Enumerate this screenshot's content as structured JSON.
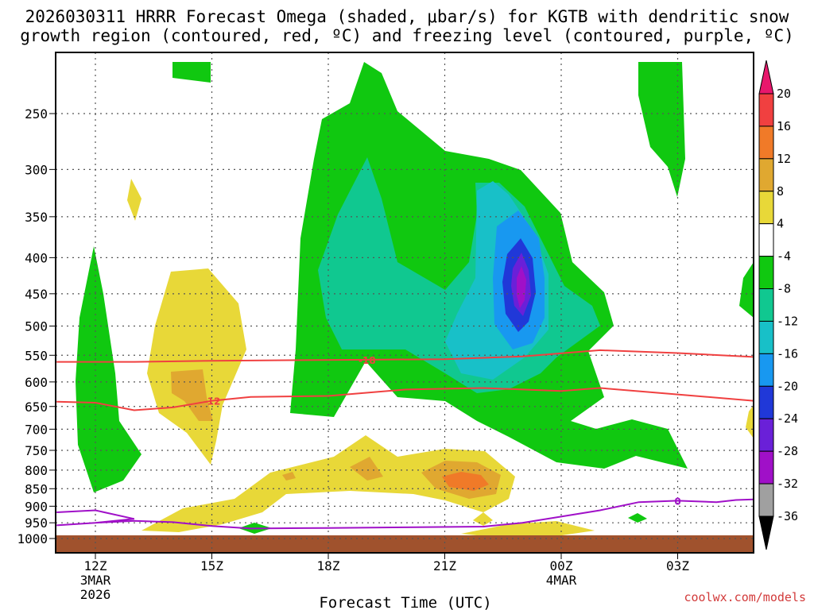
{
  "chart_data": {
    "type": "contour",
    "title_line1": "2026030311 HRRR Forecast Omega (shaded, μbar/s) for KGTB with dendritic snow",
    "title_line2": "growth region (contoured, red, ºC) and freezing level (contoured, purple, ºC)",
    "xlabel": "Forecast Time (UTC)",
    "ylabel": "",
    "credit": "coolwx.com/models",
    "x_ticks": [
      {
        "hour": 12,
        "label": "12Z",
        "sub1": "3MAR",
        "sub2": "2026"
      },
      {
        "hour": 15,
        "label": "15Z",
        "sub1": "",
        "sub2": ""
      },
      {
        "hour": 18,
        "label": "18Z",
        "sub1": "",
        "sub2": ""
      },
      {
        "hour": 21,
        "label": "21Z",
        "sub1": "",
        "sub2": ""
      },
      {
        "hour": 24,
        "label": "00Z",
        "sub1": "4MAR",
        "sub2": ""
      },
      {
        "hour": 27,
        "label": "03Z",
        "sub1": "",
        "sub2": ""
      }
    ],
    "xlim": [
      11,
      29
    ],
    "y_ticks": [
      250,
      300,
      350,
      400,
      450,
      500,
      550,
      600,
      650,
      700,
      750,
      800,
      850,
      900,
      950,
      1000
    ],
    "ylim_hpa": [
      200,
      1010
    ],
    "colorbar": {
      "levels": [
        "20",
        "16",
        "12",
        "8",
        "4",
        "-4",
        "-8",
        "-12",
        "-16",
        "-20",
        "-24",
        "-28",
        "-32",
        "-36"
      ],
      "colors": [
        "#e8176c",
        "#f04040",
        "#f07a28",
        "#e0a830",
        "#e8d838",
        "#ffffff",
        "#10c810",
        "#10c890",
        "#18c0c8",
        "#1898f0",
        "#2038d8",
        "#6a20d8",
        "#a010c8",
        "#a0a0a0",
        "#000000"
      ]
    },
    "contours": {
      "dgz": [
        {
          "label": "-18",
          "color": "#f04040",
          "points": [
            [
              11,
              562
            ],
            [
              13,
              562
            ],
            [
              15,
              560
            ],
            [
              17,
              559
            ],
            [
              19,
              558
            ],
            [
              21,
              557
            ],
            [
              23,
              552
            ],
            [
              25,
              541
            ],
            [
              27,
              546
            ],
            [
              29,
              553
            ]
          ]
        },
        {
          "label": "-12",
          "color": "#f04040",
          "points": [
            [
              11,
              640
            ],
            [
              12,
              642
            ],
            [
              13,
              658
            ],
            [
              14,
              652
            ],
            [
              15,
              638
            ],
            [
              16,
              630
            ],
            [
              18,
              628
            ],
            [
              20,
              615
            ],
            [
              22,
              612
            ],
            [
              24,
              618
            ],
            [
              25,
              612
            ],
            [
              27,
              625
            ],
            [
              29,
              638
            ]
          ]
        }
      ],
      "freezing": [
        {
          "label": "0",
          "color": "#a010c8",
          "points": [
            [
              11,
              918
            ],
            [
              12,
              912
            ],
            [
              13,
              938
            ],
            [
              12,
              950
            ],
            [
              11,
              958
            ],
            [
              12,
              950
            ],
            [
              13,
              944
            ],
            [
              14,
              948
            ],
            [
              15,
              960
            ],
            [
              16,
              968
            ],
            [
              18,
              966
            ],
            [
              20,
              964
            ],
            [
              22,
              962
            ],
            [
              23,
              950
            ],
            [
              25,
              912
            ],
            [
              26,
              888
            ],
            [
              27,
              884
            ],
            [
              28,
              888
            ],
            [
              28.5,
              882
            ],
            [
              29,
              880
            ]
          ]
        }
      ]
    },
    "ground_level_hpa": 985
  }
}
